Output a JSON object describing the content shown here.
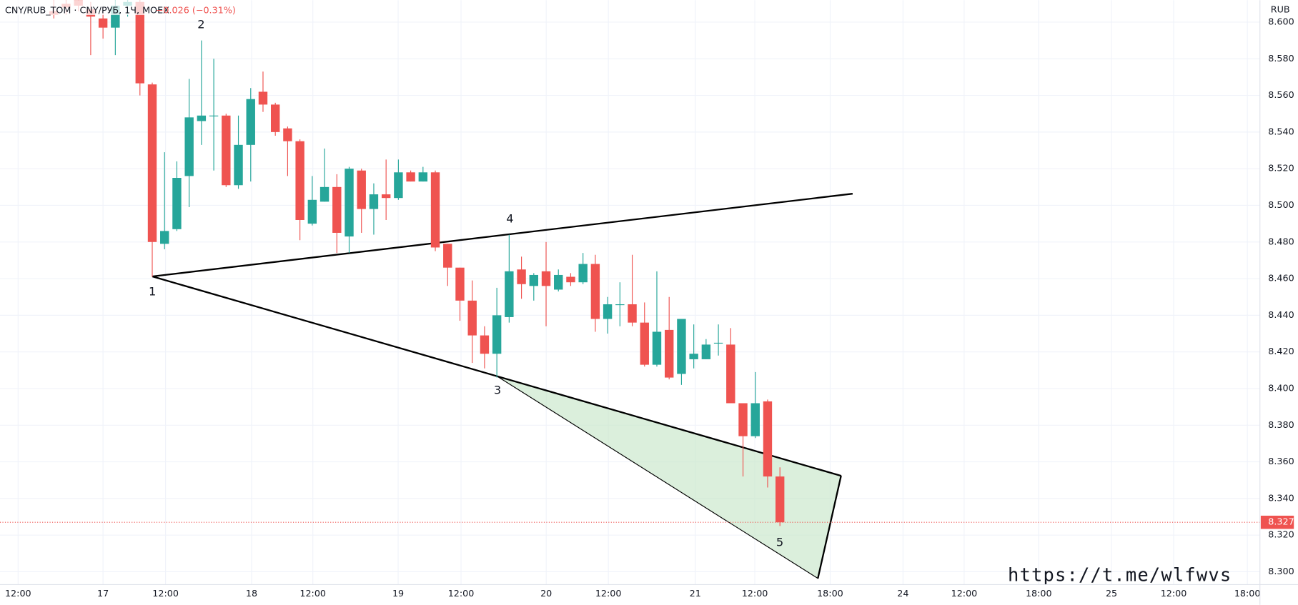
{
  "chart_data": {
    "type": "candlestick",
    "title": "CNY/RUB_TOM · CNY/РУБ, 1Ч, MOEX",
    "change": "−0.026 (−0.31%)",
    "currency": "RUB",
    "watermark": "https://t.me/wlfwvs",
    "up_color": "#26a69a",
    "down_color": "#ef5350",
    "grid": true,
    "open": [
      8.606,
      8.61,
      8.612,
      8.607,
      8.602,
      8.597,
      8.609,
      8.611,
      8.566,
      8.479,
      8.487,
      8.516,
      8.546,
      8.549,
      8.549,
      8.511,
      8.533,
      8.562,
      8.555,
      8.542,
      8.535,
      8.49,
      8.502,
      8.51,
      8.483,
      8.519,
      8.498,
      8.506,
      8.504,
      8.518,
      8.513,
      8.518,
      8.479,
      8.466,
      8.448,
      8.429,
      8.419,
      8.439,
      8.465,
      8.456,
      8.464,
      8.454,
      8.461,
      8.458,
      8.468,
      8.438,
      8.446,
      8.446,
      8.436,
      8.413,
      8.432,
      8.408,
      8.416,
      8.416,
      8.425,
      8.424,
      8.392,
      8.374,
      8.393,
      8.352
    ],
    "high": [
      8.612,
      8.612,
      8.613,
      8.611,
      8.606,
      8.612,
      8.612,
      8.612,
      8.567,
      8.529,
      8.524,
      8.569,
      8.59,
      8.58,
      8.55,
      8.549,
      8.564,
      8.573,
      8.556,
      8.543,
      8.536,
      8.516,
      8.531,
      8.517,
      8.521,
      8.52,
      8.512,
      8.525,
      8.525,
      8.519,
      8.521,
      8.519,
      8.479,
      8.466,
      8.459,
      8.434,
      8.455,
      8.484,
      8.472,
      8.463,
      8.48,
      8.465,
      8.463,
      8.474,
      8.473,
      8.45,
      8.458,
      8.473,
      8.447,
      8.464,
      8.45,
      8.438,
      8.435,
      8.427,
      8.435,
      8.433,
      8.392,
      8.409,
      8.394,
      8.357
    ],
    "low": [
      8.602,
      8.604,
      8.606,
      8.582,
      8.591,
      8.582,
      8.603,
      8.56,
      8.461,
      8.476,
      8.486,
      8.499,
      8.533,
      8.519,
      8.51,
      8.509,
      8.513,
      8.551,
      8.538,
      8.516,
      8.481,
      8.489,
      8.502,
      8.474,
      8.474,
      8.485,
      8.484,
      8.492,
      8.503,
      8.513,
      8.513,
      8.475,
      8.456,
      8.437,
      8.414,
      8.411,
      8.406,
      8.436,
      8.449,
      8.448,
      8.434,
      8.453,
      8.456,
      8.457,
      8.431,
      8.43,
      8.434,
      8.434,
      8.412,
      8.412,
      8.405,
      8.402,
      8.411,
      8.416,
      8.418,
      8.392,
      8.352,
      8.373,
      8.346,
      8.325
    ],
    "close": [
      8.604,
      8.608,
      8.609,
      8.603,
      8.597,
      8.609,
      8.611,
      8.5666,
      8.48,
      8.486,
      8.515,
      8.548,
      8.549,
      8.549,
      8.511,
      8.533,
      8.558,
      8.555,
      8.54,
      8.535,
      8.492,
      8.503,
      8.51,
      8.485,
      8.52,
      8.498,
      8.506,
      8.504,
      8.518,
      8.513,
      8.518,
      8.477,
      8.466,
      8.448,
      8.429,
      8.419,
      8.44,
      8.464,
      8.457,
      8.462,
      8.456,
      8.462,
      8.458,
      8.468,
      8.438,
      8.446,
      8.446,
      8.436,
      8.413,
      8.431,
      8.406,
      8.438,
      8.419,
      8.424,
      8.425,
      8.392,
      8.374,
      8.392,
      8.352,
      8.327
    ],
    "last_price_label": "8.327",
    "annotations": [
      "1",
      "2",
      "3",
      "4",
      "5"
    ],
    "xlim": [
      -4.37,
      98.0
    ],
    "xticks": [
      {
        "value": -2.9,
        "label": "12:00"
      },
      {
        "value": 4,
        "label": "17"
      },
      {
        "value": 9.08,
        "label": "12:00"
      },
      {
        "value": 16.07,
        "label": "18"
      },
      {
        "value": 21.05,
        "label": "12:00"
      },
      {
        "value": 27.98,
        "label": "19"
      },
      {
        "value": 33.09,
        "label": "12:00"
      },
      {
        "value": 40.01,
        "label": "20"
      },
      {
        "value": 45.06,
        "label": "12:00"
      },
      {
        "value": 52.12,
        "label": "21"
      },
      {
        "value": 56.96,
        "label": "12:00"
      },
      {
        "value": 63.08,
        "label": "18:00"
      },
      {
        "value": 69.0,
        "label": "24"
      },
      {
        "value": 73.97,
        "label": "12:00"
      },
      {
        "value": 80.03,
        "label": "18:00"
      },
      {
        "value": 85.94,
        "label": "25"
      },
      {
        "value": 90.99,
        "label": "12:00"
      },
      {
        "value": 96.98,
        "label": "18:00"
      }
    ],
    "ylim": [
      8.293,
      8.612
    ],
    "yticks": [
      {
        "value": 8.3,
        "label": "8.300"
      },
      {
        "value": 8.32,
        "label": "8.320"
      },
      {
        "value": 8.34,
        "label": "8.340"
      },
      {
        "value": 8.36,
        "label": "8.360"
      },
      {
        "value": 8.38,
        "label": "8.380"
      },
      {
        "value": 8.4,
        "label": "8.400"
      },
      {
        "value": 8.42,
        "label": "8.420"
      },
      {
        "value": 8.44,
        "label": "8.440"
      },
      {
        "value": 8.46,
        "label": "8.460"
      },
      {
        "value": 8.48,
        "label": "8.480"
      },
      {
        "value": 8.5,
        "label": "8.500"
      },
      {
        "value": 8.52,
        "label": "8.520"
      },
      {
        "value": 8.54,
        "label": "8.540"
      },
      {
        "value": 8.56,
        "label": "8.560"
      },
      {
        "value": 8.58,
        "label": "8.580"
      },
      {
        "value": 8.6,
        "label": "8.600"
      }
    ]
  }
}
